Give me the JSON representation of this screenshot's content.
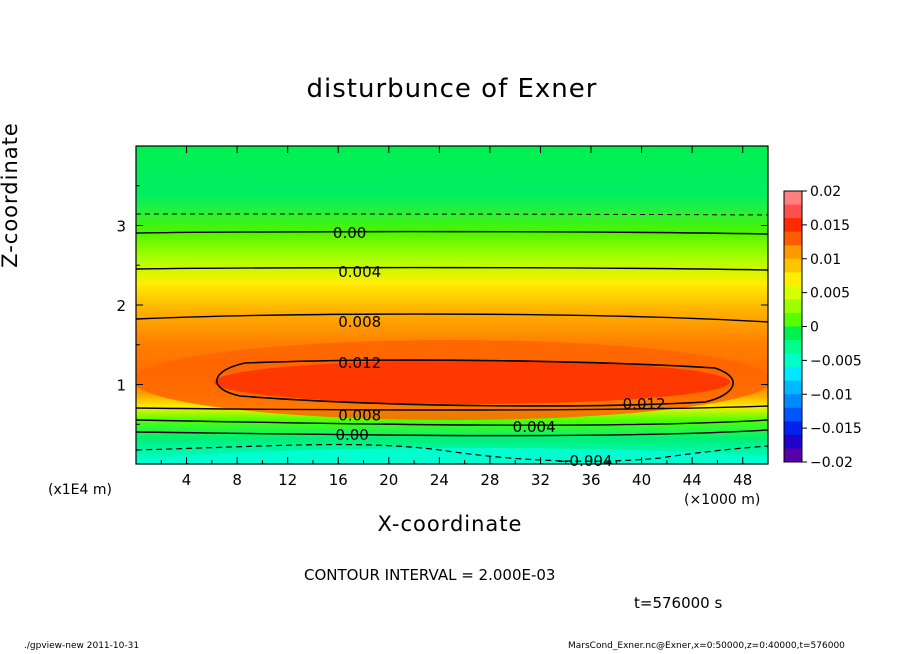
{
  "chart_data": {
    "type": "heatmap",
    "title": "disturbunce of Exner",
    "xlabel": "X-coordinate",
    "ylabel": "Z-coordinate",
    "x_unit": "(×1000 m)",
    "y_unit": "(x1E4 m)",
    "xlim": [
      0,
      50
    ],
    "ylim": [
      0,
      4
    ],
    "x_ticks": [
      4,
      8,
      12,
      16,
      20,
      24,
      28,
      32,
      36,
      40,
      44,
      48
    ],
    "y_ticks": [
      1,
      2,
      3
    ],
    "colorbar": {
      "ticks": [
        "0.02",
        "0.015",
        "0.01",
        "0.005",
        "0",
        "−0.005",
        "−0.01",
        "−0.015",
        "−0.02"
      ],
      "range": [
        -0.02,
        0.02
      ],
      "colors": [
        "#ff8080",
        "#ff5050",
        "#ff2a00",
        "#ff5c00",
        "#ff9900",
        "#ffc400",
        "#ffee00",
        "#d8ff00",
        "#9cff00",
        "#55ff00",
        "#00f050",
        "#00ff8a",
        "#00ffc8",
        "#00e8ff",
        "#00b8ff",
        "#0088ff",
        "#0055ff",
        "#0022ee",
        "#2200cc",
        "#5500aa"
      ]
    },
    "contour_labels": [
      {
        "text": "0.00",
        "x": 16.9,
        "z": 2.92
      },
      {
        "text": "0.004",
        "x": 17.7,
        "z": 2.43
      },
      {
        "text": "0.008",
        "x": 17.7,
        "z": 1.8
      },
      {
        "text": "0.012",
        "x": 17.7,
        "z": 1.28
      },
      {
        "text": "0.012",
        "x": 40.2,
        "z": 0.77
      },
      {
        "text": "0.008",
        "x": 17.7,
        "z": 0.62
      },
      {
        "text": "0.004",
        "x": 31.5,
        "z": 0.48
      },
      {
        "text": "0.00",
        "x": 17.1,
        "z": 0.38
      },
      {
        "text": "−0.004",
        "x": 35.5,
        "z": 0.05
      }
    ],
    "contour_interval_text": "CONTOUR INTERVAL = 2.000E-03",
    "time_text": "t=576000 s"
  },
  "footer": {
    "left": "./gpview-new   2011-10-31",
    "right": "MarsCond_Exner.nc@Exner,x=0:50000,z=0:40000,t=576000"
  }
}
